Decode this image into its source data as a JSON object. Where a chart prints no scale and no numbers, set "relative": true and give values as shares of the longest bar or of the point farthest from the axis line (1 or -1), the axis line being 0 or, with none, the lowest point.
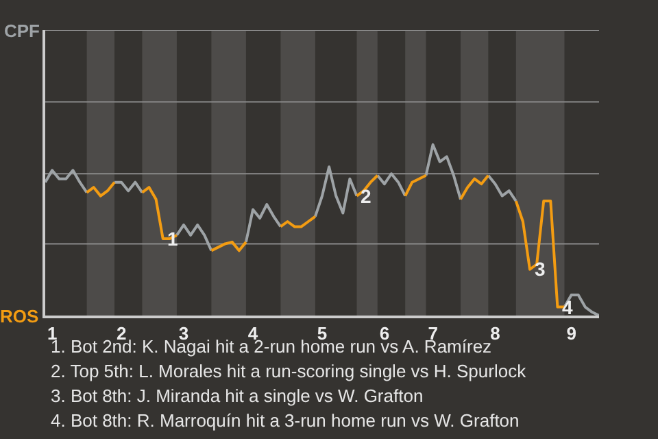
{
  "chart_data": {
    "type": "line",
    "relative": true,
    "categories": [
      null,
      "1",
      null,
      null,
      null,
      null,
      null,
      null,
      null,
      null,
      null,
      "2",
      null,
      null,
      null,
      null,
      null,
      null,
      null,
      null,
      "3",
      null,
      null,
      null,
      null,
      null,
      null,
      null,
      null,
      null,
      "4",
      null,
      null,
      null,
      null,
      null,
      null,
      null,
      null,
      null,
      "5",
      null,
      null,
      null,
      null,
      null,
      null,
      null,
      null,
      "6",
      null,
      null,
      null,
      null,
      null,
      null,
      "7",
      null,
      null,
      null,
      null,
      null,
      null,
      null,
      null,
      "8",
      null,
      null,
      null,
      null,
      null,
      null,
      null,
      null,
      null,
      null,
      "9",
      null,
      null,
      null,
      null
    ],
    "series": [
      {
        "color": "#9ea3a6",
        "values": [
          0.78,
          0.85,
          0.8,
          0.8,
          0.85,
          0.78,
          0.72,
          null,
          null,
          null,
          0.78,
          0.78,
          0.73,
          0.78,
          0.72,
          null,
          null,
          null,
          null,
          0.47,
          0.53,
          0.47,
          0.53,
          0.47,
          0.38,
          null,
          null,
          null,
          null,
          0.43,
          0.62,
          0.57,
          0.65,
          0.58,
          0.52,
          null,
          null,
          null,
          null,
          0.58,
          0.7,
          0.87,
          0.7,
          0.6,
          0.8,
          0.7,
          null,
          null,
          0.82,
          0.77,
          0.83,
          0.78,
          0.7,
          null,
          null,
          0.82,
          1,
          0.9,
          0.93,
          0.82,
          0.68,
          null,
          null,
          null,
          0.82,
          0.77,
          0.7,
          0.73,
          0.67,
          null,
          null,
          null,
          null,
          null,
          null,
          0.05,
          0.12,
          0.12,
          0.05,
          0.02,
          0
        ]
      },
      {
        "color": "#f39c12",
        "values": [
          null,
          null,
          null,
          null,
          null,
          null,
          0.72,
          0.75,
          0.7,
          0.73,
          0.78,
          null,
          null,
          null,
          0.72,
          0.75,
          0.68,
          0.45,
          0.45,
          0.47,
          null,
          null,
          null,
          null,
          0.38,
          0.4,
          0.42,
          0.43,
          0.38,
          0.43,
          null,
          null,
          null,
          null,
          0.52,
          0.55,
          0.52,
          0.52,
          0.55,
          0.58,
          null,
          null,
          null,
          null,
          null,
          0.7,
          0.73,
          0.78,
          0.82,
          null,
          null,
          null,
          0.7,
          0.78,
          0.8,
          0.82,
          null,
          null,
          null,
          null,
          0.68,
          0.75,
          0.8,
          0.77,
          0.82,
          null,
          null,
          null,
          0.67,
          0.55,
          0.27,
          0.3,
          0.67,
          0.67,
          0.05,
          0.05,
          null,
          null,
          null,
          null,
          null
        ]
      }
    ],
    "ref_lines": [
      {
        "axis": "y",
        "value": 0.42
      },
      {
        "axis": "y",
        "value": 0.83
      },
      {
        "axis": "y",
        "value": 1.25
      },
      {
        "axis": "y",
        "value": 1.67
      }
    ],
    "annotations": [
      "CPF",
      "ROS",
      {
        "text": "1",
        "y": 0.45
      },
      {
        "text": "2",
        "y": 0.7
      },
      {
        "text": "3",
        "y": 0.27
      },
      {
        "text": "4",
        "y": 0.05
      },
      "1. Bot 2nd: K. Nagai hit a 2-run home run vs A. Ramírez",
      "2. Top 5th: L. Morales hit a run-scoring single vs H. Spurlock",
      "3. Bot 8th: J. Miranda hit a single vs W. Grafton",
      "4. Bot 8th: R. Marroquín hit a 3-run home run vs W. Grafton"
    ]
  }
}
